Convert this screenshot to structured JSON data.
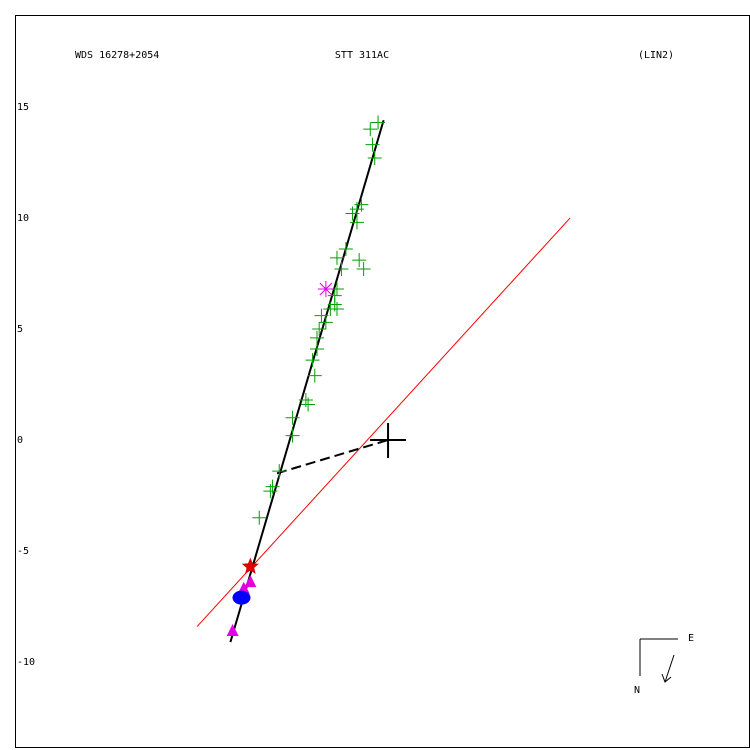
{
  "chart_data": {
    "type": "scatter",
    "header_left": "WDS 16278+2054",
    "title": "STT 311AC",
    "header_right": "(LIN2)",
    "xlim": [
      -16.8,
      16.3
    ],
    "ylim": [
      -13.87,
      19.14
    ],
    "yticks": [
      -10,
      -5,
      0,
      5,
      10,
      15
    ],
    "grid": false,
    "compass": {
      "east": "E",
      "north": "N"
    },
    "series": [
      {
        "marker": "plus",
        "color": "#00a000",
        "x": [
          -0.45,
          -0.8,
          -0.7,
          -0.6,
          -1.2,
          -1.4,
          -1.6,
          -1.4,
          -1.9,
          -2.3,
          -1.3,
          -1.1,
          -2.1,
          -2.3,
          -2.4,
          -2.4,
          -2.6,
          -2.3,
          -3.0,
          -2.8,
          -3.1,
          -3.2,
          -3.2,
          -3.4,
          -3.3,
          -3.7,
          -3.6,
          -4.3,
          -4.3,
          -4.9,
          -5.2,
          -5.3,
          -5.8
        ],
        "y": [
          14.3,
          14.0,
          13.3,
          12.7,
          10.6,
          10.4,
          10.2,
          9.8,
          8.6,
          8.2,
          8.1,
          7.7,
          7.7,
          6.8,
          6.5,
          6.1,
          5.9,
          5.9,
          5.6,
          5.3,
          5.0,
          4.6,
          4.1,
          3.6,
          2.9,
          1.8,
          1.6,
          1.0,
          0.2,
          -1.4,
          -2.1,
          -2.3,
          -3.5
        ]
      },
      {
        "marker": "asterisk",
        "color": "#e000e0",
        "x": [
          -2.8
        ],
        "y": [
          6.8
        ]
      },
      {
        "marker": "triangle",
        "color": "#e000e0",
        "x": [
          -6.2,
          -6.5,
          -7.0
        ],
        "y": [
          -6.4,
          -6.7,
          -8.6
        ]
      },
      {
        "marker": "circle",
        "color": "#0000ff",
        "x": [
          -6.6
        ],
        "y": [
          -7.1
        ]
      },
      {
        "marker": "star",
        "color": "#e00000",
        "x": [
          -6.2
        ],
        "y": [
          -5.7
        ]
      }
    ],
    "lines": [
      {
        "color": "#ff0000",
        "style": "solid",
        "width": 1,
        "x": [
          -8.6,
          8.2
        ],
        "y": [
          -8.4,
          10.0
        ]
      },
      {
        "color": "#000000",
        "style": "solid",
        "width": 2,
        "x": [
          -7.1,
          -0.2
        ],
        "y": [
          -9.1,
          14.4
        ]
      },
      {
        "color": "#000000",
        "style": "dashed",
        "width": 2,
        "x": [
          -5.0,
          0
        ],
        "y": [
          -1.5,
          0
        ]
      }
    ]
  }
}
